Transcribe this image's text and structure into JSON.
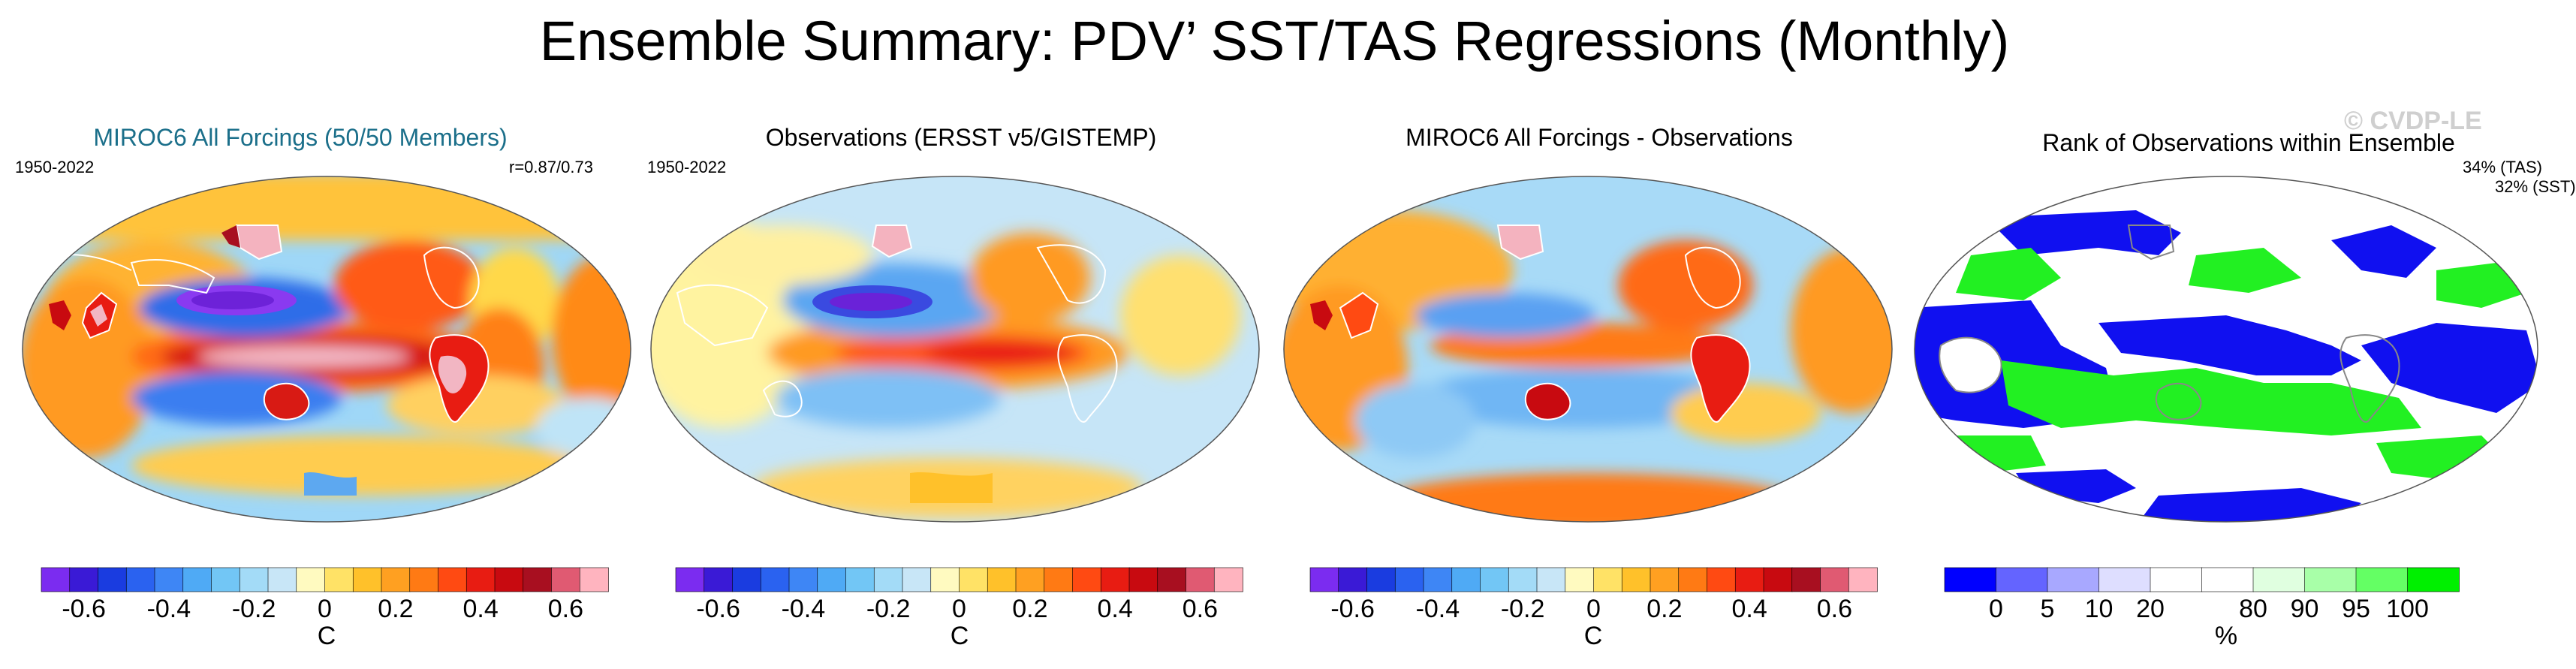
{
  "title": "Ensemble Summary: PDV’ SST/TAS Regressions (Monthly)",
  "watermark": "© CVDP-LE",
  "panels": [
    {
      "title": "MIROC6 All Forcings (50/50 Members)",
      "title_color": "#1b6f8a",
      "left_note": "1950-2022",
      "right_note": "r=0.87/0.73"
    },
    {
      "title": "Observations (ERSST v5/GISTEMP)",
      "title_color": "#000000",
      "left_note": "1950-2022"
    },
    {
      "title": "MIROC6 All Forcings - Observations",
      "title_color": "#000000"
    },
    {
      "title": "Rank of Observations within Ensemble",
      "title_color": "#000000",
      "right_note_1": "34% (TAS)",
      "right_note_2": "32% (SST)"
    }
  ],
  "colorbar_temp": {
    "unit": "C",
    "ticks": [
      "-0.6",
      "-0.4",
      "-0.2",
      "0",
      "0.2",
      "0.4",
      "0.6"
    ],
    "colors": [
      "#7b2cf0",
      "#3a1ad6",
      "#1a3ce0",
      "#2a62f0",
      "#3e86f5",
      "#4faaf5",
      "#72c6f5",
      "#a3dbf7",
      "#c8e6f7",
      "#fffac0",
      "#ffe266",
      "#ffc12a",
      "#ffa021",
      "#ff7a14",
      "#ff4a12",
      "#e81c12",
      "#c80a10",
      "#a80f20",
      "#e05a72",
      "#ffb4bf"
    ]
  },
  "colorbar_rank": {
    "unit": "%",
    "ticks": [
      "0",
      "5",
      "10",
      "20",
      "80",
      "90",
      "95",
      "100"
    ],
    "colors": [
      "#0000ff",
      "#6464ff",
      "#a8a8ff",
      "#dedeff",
      "#ffffff",
      "#ffffff",
      "#e0ffe0",
      "#a8ffa8",
      "#64ff64",
      "#00f000"
    ]
  }
}
